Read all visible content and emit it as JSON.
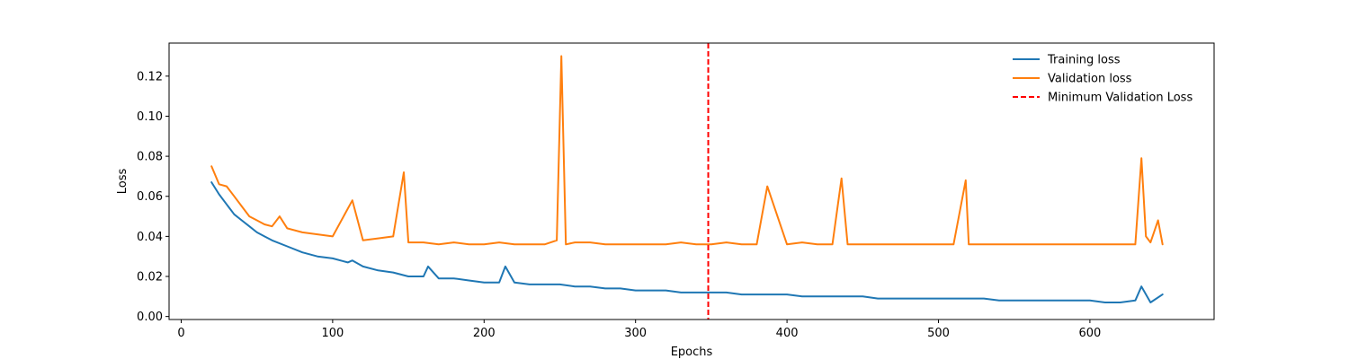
{
  "chart_data": {
    "type": "line",
    "title": "",
    "xlabel": "Epochs",
    "ylabel": "Loss",
    "xlim": [
      -8,
      682
    ],
    "ylim": [
      -0.0015,
      0.1365
    ],
    "x_ticks": [
      0,
      100,
      200,
      300,
      400,
      500,
      600
    ],
    "y_ticks": [
      0.0,
      0.02,
      0.04,
      0.06,
      0.08,
      0.1,
      0.12
    ],
    "x_tick_labels": [
      "0",
      "100",
      "200",
      "300",
      "400",
      "500",
      "600"
    ],
    "y_tick_labels": [
      "0.00",
      "0.02",
      "0.04",
      "0.06",
      "0.08",
      "0.10",
      "0.12"
    ],
    "grid": false,
    "legend_position": "top-right",
    "x_start": 20,
    "x_end": 648,
    "series": [
      {
        "name": "Training loss",
        "color": "#1f77b4",
        "style": "solid",
        "x": [
          20,
          25,
          30,
          35,
          40,
          45,
          50,
          55,
          60,
          70,
          80,
          90,
          100,
          110,
          113,
          120,
          130,
          140,
          150,
          160,
          163,
          170,
          180,
          190,
          200,
          210,
          214,
          220,
          230,
          240,
          250,
          260,
          270,
          280,
          290,
          300,
          310,
          320,
          330,
          340,
          350,
          360,
          370,
          380,
          390,
          400,
          410,
          420,
          430,
          440,
          450,
          460,
          470,
          480,
          490,
          500,
          510,
          520,
          530,
          540,
          550,
          560,
          570,
          580,
          590,
          600,
          610,
          620,
          630,
          634,
          640,
          648
        ],
        "y": [
          0.067,
          0.061,
          0.056,
          0.051,
          0.048,
          0.045,
          0.042,
          0.04,
          0.038,
          0.035,
          0.032,
          0.03,
          0.029,
          0.027,
          0.028,
          0.025,
          0.023,
          0.022,
          0.02,
          0.02,
          0.025,
          0.019,
          0.019,
          0.018,
          0.017,
          0.017,
          0.025,
          0.017,
          0.016,
          0.016,
          0.016,
          0.015,
          0.015,
          0.014,
          0.014,
          0.013,
          0.013,
          0.013,
          0.012,
          0.012,
          0.012,
          0.012,
          0.011,
          0.011,
          0.011,
          0.011,
          0.01,
          0.01,
          0.01,
          0.01,
          0.01,
          0.009,
          0.009,
          0.009,
          0.009,
          0.009,
          0.009,
          0.009,
          0.009,
          0.008,
          0.008,
          0.008,
          0.008,
          0.008,
          0.008,
          0.008,
          0.007,
          0.007,
          0.008,
          0.015,
          0.007,
          0.011
        ]
      },
      {
        "name": "Validation loss",
        "color": "#ff7f0e",
        "style": "solid",
        "x": [
          20,
          25,
          30,
          35,
          40,
          45,
          50,
          55,
          60,
          65,
          70,
          80,
          90,
          100,
          113,
          120,
          130,
          140,
          147,
          150,
          160,
          170,
          180,
          190,
          200,
          210,
          220,
          230,
          240,
          248,
          251,
          254,
          260,
          270,
          280,
          290,
          300,
          310,
          320,
          330,
          340,
          350,
          360,
          370,
          380,
          387,
          400,
          410,
          420,
          430,
          436,
          440,
          450,
          460,
          470,
          480,
          490,
          500,
          510,
          518,
          520,
          530,
          540,
          550,
          560,
          570,
          580,
          590,
          600,
          610,
          620,
          630,
          634,
          637,
          640,
          645,
          648
        ],
        "y": [
          0.075,
          0.066,
          0.065,
          0.06,
          0.055,
          0.05,
          0.048,
          0.046,
          0.045,
          0.05,
          0.044,
          0.042,
          0.041,
          0.04,
          0.058,
          0.038,
          0.039,
          0.04,
          0.072,
          0.037,
          0.037,
          0.036,
          0.037,
          0.036,
          0.036,
          0.037,
          0.036,
          0.036,
          0.036,
          0.038,
          0.13,
          0.036,
          0.037,
          0.037,
          0.036,
          0.036,
          0.036,
          0.036,
          0.036,
          0.037,
          0.036,
          0.036,
          0.037,
          0.036,
          0.036,
          0.065,
          0.036,
          0.037,
          0.036,
          0.036,
          0.069,
          0.036,
          0.036,
          0.036,
          0.036,
          0.036,
          0.036,
          0.036,
          0.036,
          0.068,
          0.036,
          0.036,
          0.036,
          0.036,
          0.036,
          0.036,
          0.036,
          0.036,
          0.036,
          0.036,
          0.036,
          0.036,
          0.079,
          0.04,
          0.037,
          0.048,
          0.036
        ]
      },
      {
        "name": "Minimum Validation Loss",
        "color": "#ff0000",
        "style": "dashed",
        "vertical_line_x": 348
      }
    ],
    "annotations": []
  }
}
